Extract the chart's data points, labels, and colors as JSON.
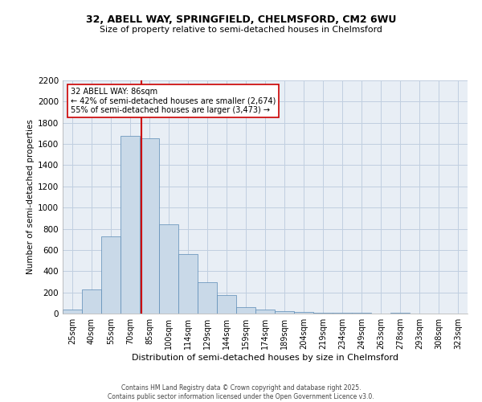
{
  "title": "32, ABELL WAY, SPRINGFIELD, CHELMSFORD, CM2 6WU",
  "subtitle": "Size of property relative to semi-detached houses in Chelmsford",
  "xlabel": "Distribution of semi-detached houses by size in Chelmsford",
  "ylabel": "Number of semi-detached properties",
  "categories": [
    "25sqm",
    "40sqm",
    "55sqm",
    "70sqm",
    "85sqm",
    "100sqm",
    "114sqm",
    "129sqm",
    "144sqm",
    "159sqm",
    "174sqm",
    "189sqm",
    "204sqm",
    "219sqm",
    "234sqm",
    "249sqm",
    "263sqm",
    "278sqm",
    "293sqm",
    "308sqm",
    "323sqm"
  ],
  "values": [
    40,
    225,
    730,
    1680,
    1655,
    845,
    560,
    295,
    175,
    60,
    35,
    25,
    15,
    10,
    5,
    10,
    0,
    5,
    0,
    0,
    0
  ],
  "bar_color": "#c9d9e8",
  "bar_edge_color": "#5a8ab5",
  "vline_color": "#cc0000",
  "annotation_title": "32 ABELL WAY: 86sqm",
  "annotation_smaller": "← 42% of semi-detached houses are smaller (2,674)",
  "annotation_larger": "55% of semi-detached houses are larger (3,473) →",
  "annotation_box_color": "#ffffff",
  "annotation_box_edge": "#cc0000",
  "ylim": [
    0,
    2200
  ],
  "yticks": [
    0,
    200,
    400,
    600,
    800,
    1000,
    1200,
    1400,
    1600,
    1800,
    2000,
    2200
  ],
  "grid_color": "#c0cfe0",
  "background_color": "#e8eef5",
  "footer1": "Contains HM Land Registry data © Crown copyright and database right 2025.",
  "footer2": "Contains public sector information licensed under the Open Government Licence v3.0."
}
